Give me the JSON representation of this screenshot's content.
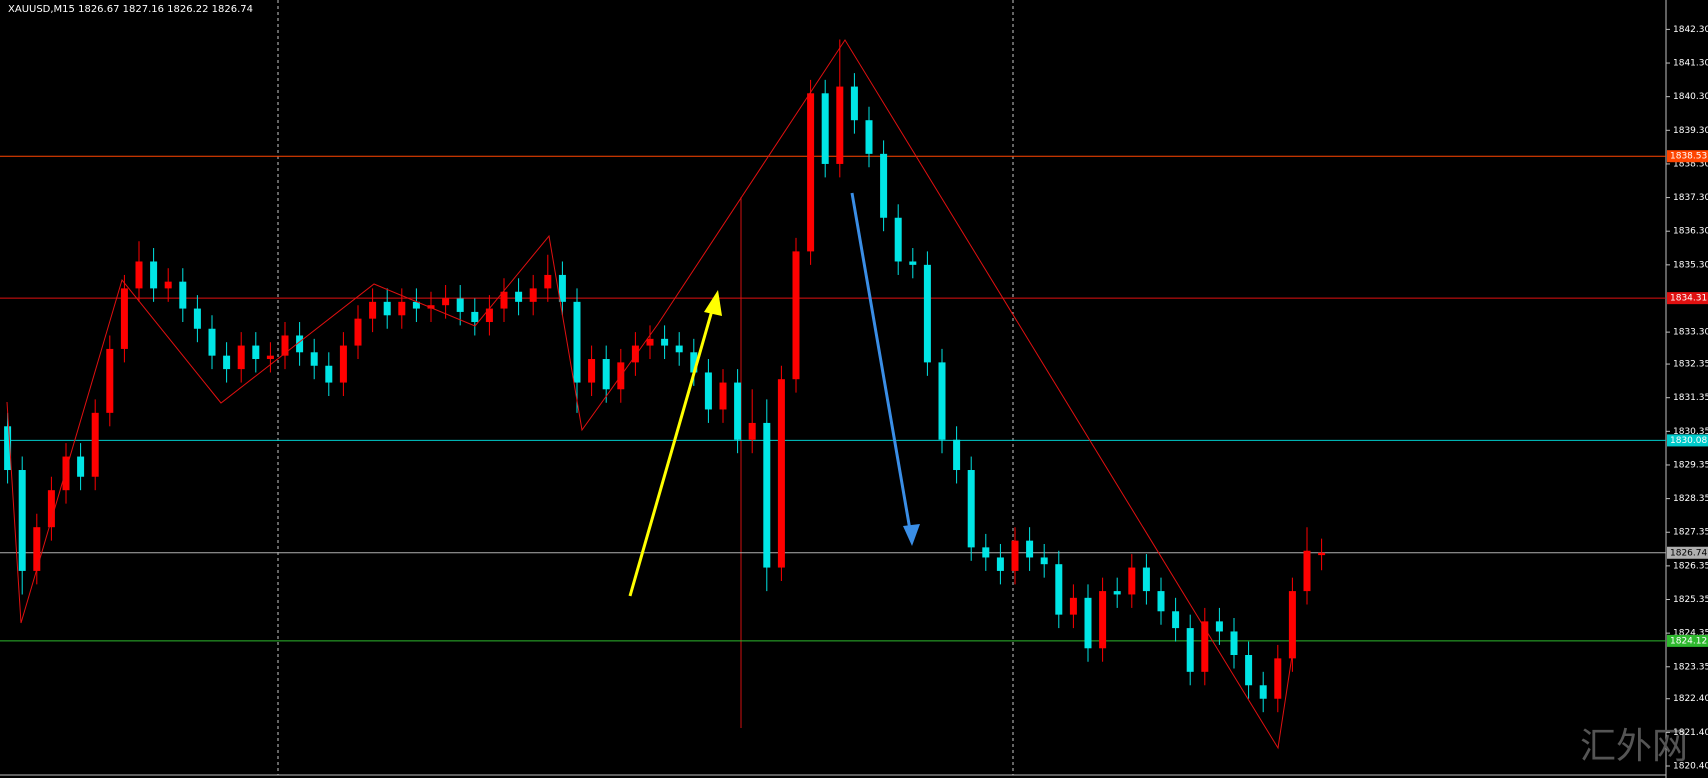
{
  "chart_data": {
    "type": "candlestick",
    "title": "XAUUSD,M15  1826.67 1827.16 1826.22 1826.74",
    "watermark": "汇外网",
    "up_color": "#ff0000",
    "down_color": "#00e5e5",
    "open": [
      1830.5,
      1829.2,
      1826.2,
      1827.5,
      1828.6,
      1829.6,
      1829.0,
      1830.9,
      1832.8,
      1834.6,
      1835.4,
      1834.6,
      1834.8,
      1834.0,
      1833.4,
      1832.6,
      1832.2,
      1832.9,
      1832.5,
      1832.6,
      1833.2,
      1832.7,
      1832.3,
      1831.8,
      1832.9,
      1833.7,
      1834.2,
      1833.8,
      1834.2,
      1834.0,
      1834.1,
      1834.3,
      1833.9,
      1833.6,
      1834.0,
      1834.5,
      1834.2,
      1834.6,
      1835.0,
      1834.2,
      1831.8,
      1832.5,
      1831.6,
      1832.4,
      1832.9,
      1833.1,
      1832.9,
      1832.7,
      1832.1,
      1831.0,
      1831.8,
      1830.1,
      1830.6,
      1826.3,
      1831.9,
      1835.7,
      1840.4,
      1838.3,
      1840.6,
      1839.6,
      1838.6,
      1836.7,
      1835.4,
      1835.3,
      1832.4,
      1830.1,
      1829.2,
      1826.9,
      1826.6,
      1826.2,
      1827.1,
      1826.6,
      1826.4,
      1824.9,
      1825.4,
      1823.9,
      1825.6,
      1825.5,
      1826.3,
      1825.6,
      1825.0,
      1824.5,
      1823.2,
      1824.7,
      1824.4,
      1823.7,
      1822.8,
      1822.4,
      1823.6,
      1825.6,
      1826.67
    ],
    "high": [
      1830.9,
      1829.6,
      1827.9,
      1829.0,
      1830.0,
      1830.0,
      1831.3,
      1833.2,
      1835.0,
      1836.0,
      1835.8,
      1835.2,
      1835.2,
      1834.4,
      1833.8,
      1833.0,
      1833.3,
      1833.3,
      1833.0,
      1833.6,
      1833.6,
      1833.1,
      1832.7,
      1833.3,
      1834.1,
      1834.6,
      1834.6,
      1834.6,
      1834.6,
      1834.5,
      1834.7,
      1834.7,
      1834.3,
      1834.4,
      1834.9,
      1834.9,
      1835.0,
      1835.6,
      1835.4,
      1834.6,
      1832.9,
      1832.9,
      1832.8,
      1833.3,
      1833.5,
      1833.5,
      1833.3,
      1833.1,
      1832.5,
      1832.2,
      1832.2,
      1831.6,
      1831.3,
      1832.3,
      1836.1,
      1840.8,
      1840.8,
      1842.0,
      1841.0,
      1840.0,
      1839.0,
      1837.1,
      1835.8,
      1835.7,
      1832.8,
      1830.5,
      1829.6,
      1827.3,
      1827.0,
      1827.5,
      1827.5,
      1827.0,
      1826.8,
      1825.8,
      1825.8,
      1826.0,
      1826.0,
      1826.7,
      1826.7,
      1826.0,
      1825.4,
      1824.9,
      1825.1,
      1825.1,
      1824.8,
      1824.1,
      1823.2,
      1824.0,
      1826.0,
      1827.5,
      1827.16
    ],
    "low": [
      1828.8,
      1825.5,
      1825.8,
      1827.1,
      1828.2,
      1828.6,
      1828.6,
      1830.5,
      1832.4,
      1834.2,
      1834.2,
      1834.2,
      1833.6,
      1833.0,
      1832.2,
      1831.8,
      1831.8,
      1832.1,
      1832.1,
      1832.2,
      1832.3,
      1831.9,
      1831.4,
      1831.4,
      1832.5,
      1833.3,
      1833.4,
      1833.4,
      1833.6,
      1833.6,
      1833.7,
      1833.5,
      1833.2,
      1833.2,
      1833.6,
      1833.8,
      1833.8,
      1834.2,
      1833.8,
      1830.9,
      1831.4,
      1831.2,
      1831.2,
      1832.0,
      1832.5,
      1832.5,
      1832.3,
      1831.7,
      1830.6,
      1830.6,
      1829.7,
      1829.7,
      1825.6,
      1825.9,
      1831.5,
      1835.3,
      1837.9,
      1837.9,
      1839.2,
      1838.2,
      1836.3,
      1835.0,
      1834.9,
      1832.0,
      1829.7,
      1828.8,
      1826.5,
      1826.2,
      1825.8,
      1825.8,
      1826.2,
      1826.0,
      1824.5,
      1824.5,
      1823.5,
      1823.5,
      1825.1,
      1825.1,
      1825.2,
      1824.6,
      1824.1,
      1822.8,
      1822.8,
      1824.0,
      1823.3,
      1822.4,
      1822.0,
      1822.0,
      1823.2,
      1825.2,
      1826.22
    ],
    "close": [
      1829.2,
      1826.2,
      1827.5,
      1828.6,
      1829.6,
      1829.0,
      1830.9,
      1832.8,
      1834.6,
      1835.4,
      1834.6,
      1834.8,
      1834.0,
      1833.4,
      1832.6,
      1832.2,
      1832.9,
      1832.5,
      1832.6,
      1833.2,
      1832.7,
      1832.3,
      1831.8,
      1832.9,
      1833.7,
      1834.2,
      1833.8,
      1834.2,
      1834.0,
      1834.1,
      1834.3,
      1833.9,
      1833.6,
      1834.0,
      1834.5,
      1834.2,
      1834.6,
      1835.0,
      1834.2,
      1831.8,
      1832.5,
      1831.6,
      1832.4,
      1832.9,
      1833.1,
      1832.9,
      1832.7,
      1832.1,
      1831.0,
      1831.8,
      1830.1,
      1830.6,
      1826.3,
      1831.9,
      1835.7,
      1840.4,
      1838.3,
      1840.6,
      1839.6,
      1838.6,
      1836.7,
      1835.4,
      1835.3,
      1832.4,
      1830.1,
      1829.2,
      1826.9,
      1826.6,
      1826.2,
      1827.1,
      1826.6,
      1826.4,
      1824.9,
      1825.4,
      1823.9,
      1825.6,
      1825.5,
      1826.3,
      1825.6,
      1825.0,
      1824.5,
      1823.2,
      1824.7,
      1824.4,
      1823.7,
      1822.8,
      1822.4,
      1823.6,
      1825.6,
      1826.8,
      1826.74
    ],
    "levels": [
      {
        "value": 1838.53,
        "color": "#ff4500"
      },
      {
        "value": 1834.31,
        "color": "#e01010"
      },
      {
        "value": 1830.08,
        "color": "#00cccc"
      },
      {
        "value": 1826.74,
        "color": "#b0b0b0"
      },
      {
        "value": 1824.12,
        "color": "#2eb82e"
      }
    ],
    "ylim": [
      1820.4,
      1842.3
    ],
    "yticks": [
      {
        "value": 1842.3,
        "label": "1842.30"
      },
      {
        "value": 1841.3,
        "label": "1841.30"
      },
      {
        "value": 1840.3,
        "label": "1840.30"
      },
      {
        "value": 1839.3,
        "label": "1839.30"
      },
      {
        "value": 1838.3,
        "label": "1838.30"
      },
      {
        "value": 1837.3,
        "label": "1837.30"
      },
      {
        "value": 1836.3,
        "label": "1836.30"
      },
      {
        "value": 1835.3,
        "label": "1835.30"
      },
      {
        "value": 1833.3,
        "label": "1833.30"
      },
      1832.35,
      1831.35,
      1830.35,
      1829.35,
      1828.35,
      1827.35,
      1826.35,
      1825.35,
      1824.35,
      1823.35,
      {
        "value": 1822.4,
        "label": "1822.40"
      },
      {
        "value": 1821.4,
        "label": "1821.40"
      },
      {
        "value": 1820.4,
        "label": "1820.40"
      }
    ]
  }
}
